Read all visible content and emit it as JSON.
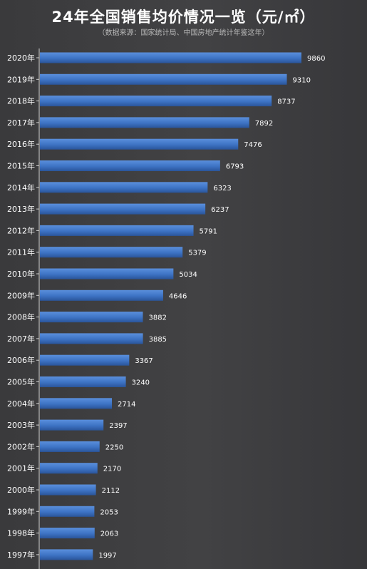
{
  "chart_data": {
    "type": "bar",
    "orientation": "horizontal",
    "title": "24年全国销售均价情况一览（元/㎡）",
    "subtitle": "（数据来源：国家统计局、中国房地产统计年鉴这年）",
    "categories": [
      "2020年",
      "2019年",
      "2018年",
      "2017年",
      "2016年",
      "2015年",
      "2014年",
      "2013年",
      "2012年",
      "2011年",
      "2010年",
      "2009年",
      "2008年",
      "2007年",
      "2006年",
      "2005年",
      "2004年",
      "2003年",
      "2002年",
      "2001年",
      "2000年",
      "1999年",
      "1998年",
      "1997年"
    ],
    "values": [
      9860,
      9310,
      8737,
      7892,
      7476,
      6793,
      6323,
      6237,
      5791,
      5379,
      5034,
      4646,
      3882,
      3885,
      3367,
      3240,
      2714,
      2397,
      2250,
      2170,
      2112,
      2053,
      2063,
      1997
    ],
    "xlim": [
      0,
      9860
    ],
    "grid": false,
    "legend": "none",
    "bar_color": "#3d73c4",
    "axis_color": "#cfcfcf"
  }
}
